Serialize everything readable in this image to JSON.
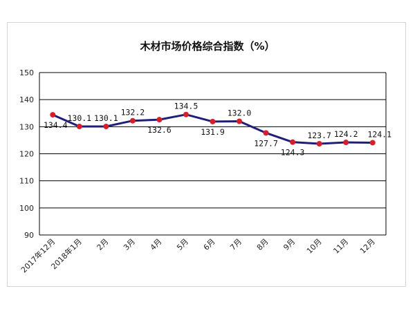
{
  "chart_data": {
    "type": "line",
    "title": "木材市场价格综合指数（%）",
    "categories": [
      "2017年12月",
      "2018年1月",
      "2月",
      "3月",
      "4月",
      "5月",
      "6月",
      "7月",
      "8月",
      "9月",
      "10月",
      "11月",
      "12月"
    ],
    "series": [
      {
        "values": [
          134.4,
          130.1,
          130.1,
          132.2,
          132.6,
          134.5,
          131.9,
          132.0,
          127.7,
          124.3,
          123.7,
          124.2,
          124.1
        ],
        "data_labels": [
          "134.4",
          "130.1",
          "130.1",
          "132.2",
          "132.6",
          "134.5",
          "131.9",
          "132.0",
          "127.7",
          "124.3",
          "123.7",
          "124.2",
          "124.1"
        ],
        "color": "#1f1f78",
        "marker_color": "#d61f2a"
      }
    ],
    "ylim": [
      90,
      150
    ],
    "yticks": [
      "90",
      "100",
      "110",
      "120",
      "130",
      "140",
      "150"
    ],
    "grid": true,
    "legend": "none"
  }
}
